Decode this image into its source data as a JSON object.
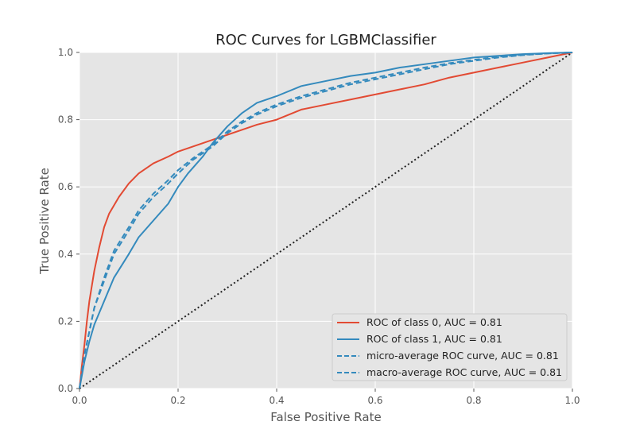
{
  "chart_data": {
    "type": "line",
    "title": "ROC Curves for LGBMClassifier",
    "xlabel": "False Positive Rate",
    "ylabel": "True Positive Rate",
    "xlim": [
      0.0,
      1.0
    ],
    "ylim": [
      0.0,
      1.0
    ],
    "xticks": [
      "0.0",
      "0.2",
      "0.4",
      "0.6",
      "0.8",
      "1.0"
    ],
    "yticks": [
      "0.0",
      "0.2",
      "0.4",
      "0.6",
      "0.8",
      "1.0"
    ],
    "grid": true,
    "legend_position": "lower-right",
    "series": [
      {
        "name": "ROC of class 0, AUC = 0.81",
        "color": "#e24a33",
        "style": "solid",
        "x": [
          0,
          0.005,
          0.01,
          0.015,
          0.02,
          0.03,
          0.04,
          0.05,
          0.06,
          0.08,
          0.1,
          0.12,
          0.15,
          0.18,
          0.2,
          0.23,
          0.25,
          0.27,
          0.3,
          0.33,
          0.36,
          0.4,
          0.45,
          0.5,
          0.55,
          0.6,
          0.65,
          0.7,
          0.75,
          0.8,
          0.85,
          0.9,
          0.95,
          1.0
        ],
        "y": [
          0,
          0.07,
          0.13,
          0.2,
          0.26,
          0.35,
          0.42,
          0.48,
          0.52,
          0.57,
          0.61,
          0.64,
          0.67,
          0.69,
          0.705,
          0.72,
          0.73,
          0.74,
          0.755,
          0.77,
          0.785,
          0.8,
          0.83,
          0.845,
          0.86,
          0.875,
          0.89,
          0.905,
          0.925,
          0.94,
          0.955,
          0.97,
          0.985,
          1.0
        ]
      },
      {
        "name": "ROC of class 1, AUC = 0.81",
        "color": "#348abd",
        "style": "solid",
        "x": [
          0,
          0.01,
          0.02,
          0.03,
          0.05,
          0.07,
          0.1,
          0.12,
          0.15,
          0.18,
          0.2,
          0.22,
          0.25,
          0.27,
          0.3,
          0.33,
          0.36,
          0.4,
          0.45,
          0.5,
          0.55,
          0.6,
          0.65,
          0.7,
          0.75,
          0.8,
          0.85,
          0.9,
          0.95,
          1.0
        ],
        "y": [
          0,
          0.08,
          0.14,
          0.19,
          0.26,
          0.33,
          0.4,
          0.45,
          0.5,
          0.55,
          0.6,
          0.64,
          0.69,
          0.73,
          0.78,
          0.82,
          0.85,
          0.87,
          0.9,
          0.915,
          0.93,
          0.94,
          0.955,
          0.965,
          0.975,
          0.985,
          0.99,
          0.995,
          0.998,
          1.0
        ]
      },
      {
        "name": "micro-average ROC curve, AUC = 0.81",
        "color": "#348abd",
        "style": "dashed",
        "x": [
          0,
          0.01,
          0.02,
          0.03,
          0.05,
          0.07,
          0.1,
          0.12,
          0.15,
          0.18,
          0.2,
          0.23,
          0.25,
          0.27,
          0.3,
          0.33,
          0.36,
          0.4,
          0.45,
          0.5,
          0.55,
          0.6,
          0.65,
          0.7,
          0.75,
          0.8,
          0.85,
          0.9,
          0.95,
          1.0
        ],
        "y": [
          0,
          0.1,
          0.17,
          0.24,
          0.32,
          0.4,
          0.47,
          0.52,
          0.57,
          0.61,
          0.64,
          0.68,
          0.7,
          0.72,
          0.76,
          0.79,
          0.815,
          0.84,
          0.865,
          0.885,
          0.905,
          0.92,
          0.935,
          0.95,
          0.965,
          0.975,
          0.985,
          0.992,
          0.997,
          1.0
        ]
      },
      {
        "name": "macro-average ROC curve, AUC = 0.81",
        "color": "#348abd",
        "style": "dashed",
        "x": [
          0,
          0.01,
          0.02,
          0.03,
          0.05,
          0.07,
          0.1,
          0.12,
          0.15,
          0.18,
          0.2,
          0.23,
          0.25,
          0.27,
          0.3,
          0.33,
          0.36,
          0.4,
          0.45,
          0.5,
          0.55,
          0.6,
          0.65,
          0.7,
          0.75,
          0.8,
          0.85,
          0.9,
          0.95,
          1.0
        ],
        "y": [
          0,
          0.1,
          0.17,
          0.24,
          0.33,
          0.41,
          0.48,
          0.53,
          0.58,
          0.62,
          0.65,
          0.685,
          0.705,
          0.725,
          0.765,
          0.795,
          0.82,
          0.845,
          0.87,
          0.89,
          0.91,
          0.925,
          0.94,
          0.955,
          0.968,
          0.978,
          0.987,
          0.993,
          0.997,
          1.0
        ]
      },
      {
        "name": "",
        "color": "#222222",
        "style": "dotted",
        "x": [
          0,
          1
        ],
        "y": [
          0,
          1
        ]
      }
    ]
  }
}
